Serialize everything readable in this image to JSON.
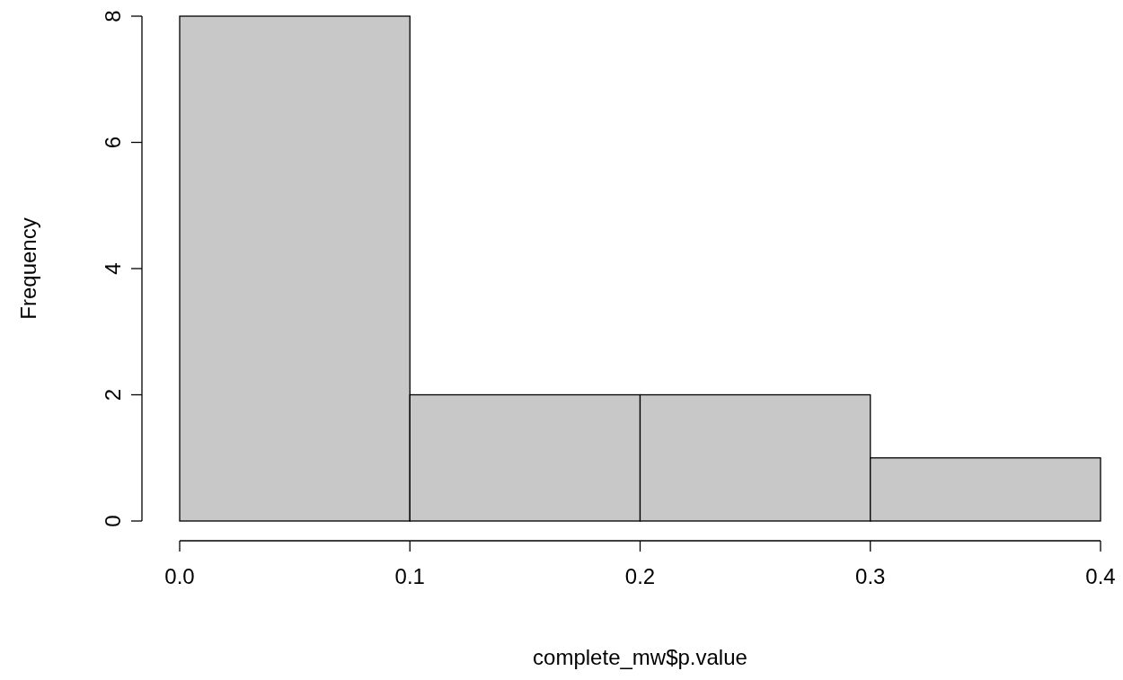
{
  "chart_data": {
    "type": "histogram",
    "xlabel": "complete_mw$p.value",
    "ylabel": "Frequency",
    "bins": [
      0,
      0.1,
      0.2,
      0.3,
      0.4
    ],
    "values": [
      8,
      2,
      2,
      1
    ],
    "color": "#c8c8c8",
    "xlim": [
      0,
      0.4
    ],
    "xticks": [
      {
        "value": 0,
        "label": "0.0"
      },
      0.1,
      0.2,
      0.3,
      0.4
    ],
    "ylim": [
      0,
      8
    ],
    "yticks": [
      0,
      2,
      4,
      6,
      8
    ]
  }
}
